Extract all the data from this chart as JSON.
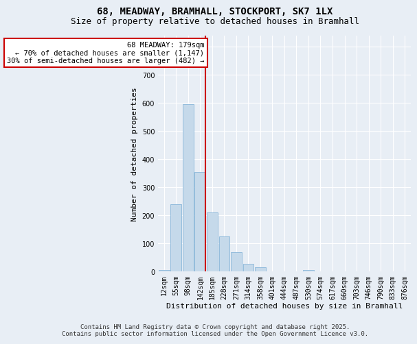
{
  "title1": "68, MEADWAY, BRAMHALL, STOCKPORT, SK7 1LX",
  "title2": "Size of property relative to detached houses in Bramhall",
  "xlabel": "Distribution of detached houses by size in Bramhall",
  "ylabel": "Number of detached properties",
  "categories": [
    "12sqm",
    "55sqm",
    "98sqm",
    "142sqm",
    "185sqm",
    "228sqm",
    "271sqm",
    "314sqm",
    "358sqm",
    "401sqm",
    "444sqm",
    "487sqm",
    "530sqm",
    "574sqm",
    "617sqm",
    "660sqm",
    "703sqm",
    "746sqm",
    "790sqm",
    "833sqm",
    "876sqm"
  ],
  "values": [
    5,
    240,
    595,
    355,
    210,
    125,
    68,
    28,
    15,
    0,
    0,
    0,
    5,
    0,
    0,
    0,
    0,
    0,
    0,
    0,
    0
  ],
  "bar_color": "#c5d9ea",
  "bar_edge_color": "#7aadd4",
  "reference_line_color": "#cc0000",
  "reference_line_idx": 3,
  "annotation_text": "68 MEADWAY: 179sqm\n← 70% of detached houses are smaller (1,147)\n30% of semi-detached houses are larger (482) →",
  "annotation_box_edgecolor": "#cc0000",
  "ylim": [
    0,
    840
  ],
  "yticks": [
    0,
    100,
    200,
    300,
    400,
    500,
    600,
    700,
    800
  ],
  "background_color": "#e8eef5",
  "plot_bg_color": "#e8eef5",
  "grid_color": "#ffffff",
  "footer1": "Contains HM Land Registry data © Crown copyright and database right 2025.",
  "footer2": "Contains public sector information licensed under the Open Government Licence v3.0.",
  "title_fontsize": 10,
  "subtitle_fontsize": 9,
  "axis_label_fontsize": 8,
  "tick_fontsize": 7,
  "annotation_fontsize": 7.5,
  "footer_fontsize": 6.5
}
